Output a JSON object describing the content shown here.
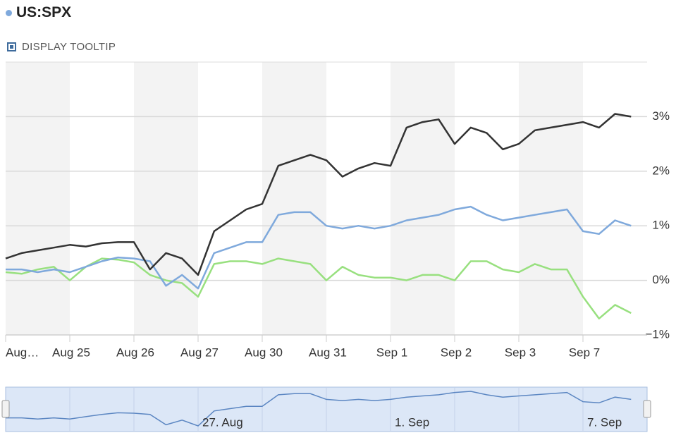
{
  "chart_data": {
    "type": "line",
    "tooltip_toggle": "DISPLAY TOOLTIP",
    "categories": [
      "Aug…",
      null,
      null,
      null,
      "Aug 25",
      null,
      null,
      null,
      "Aug 26",
      null,
      null,
      null,
      "Aug 27",
      null,
      null,
      null,
      "Aug 30",
      null,
      null,
      null,
      "Aug 31",
      null,
      null,
      null,
      "Sep 1",
      null,
      null,
      null,
      "Sep 2",
      null,
      null,
      null,
      "Sep 3",
      null,
      null,
      null,
      "Sep 7",
      null,
      null,
      null
    ],
    "series": [
      {
        "color": "#333333",
        "values": [
          0.4,
          0.5,
          0.55,
          0.6,
          0.65,
          0.62,
          0.68,
          0.7,
          0.7,
          0.2,
          0.5,
          0.4,
          0.1,
          0.9,
          1.1,
          1.3,
          1.4,
          2.1,
          2.2,
          2.3,
          2.2,
          1.9,
          2.05,
          2.15,
          2.1,
          2.8,
          2.9,
          2.95,
          2.5,
          2.8,
          2.7,
          2.4,
          2.5,
          2.75,
          2.8,
          2.85,
          2.9,
          2.8,
          3.05,
          3.0
        ]
      },
      {
        "name": "US:SPX",
        "color": "#7fa9dc",
        "values": [
          0.2,
          0.2,
          0.15,
          0.2,
          0.15,
          0.25,
          0.35,
          0.42,
          0.4,
          0.35,
          -0.1,
          0.1,
          -0.15,
          0.5,
          0.6,
          0.7,
          0.7,
          1.2,
          1.25,
          1.25,
          1.0,
          0.95,
          1.0,
          0.95,
          1.0,
          1.1,
          1.15,
          1.2,
          1.3,
          1.35,
          1.2,
          1.1,
          1.15,
          1.2,
          1.25,
          1.3,
          0.9,
          0.85,
          1.1,
          1.0
        ]
      },
      {
        "color": "#98e07f",
        "values": [
          0.15,
          0.12,
          0.2,
          0.25,
          0.0,
          0.25,
          0.4,
          0.38,
          0.33,
          0.1,
          0.0,
          -0.05,
          -0.3,
          0.3,
          0.35,
          0.35,
          0.3,
          0.4,
          0.35,
          0.3,
          0.0,
          0.25,
          0.1,
          0.05,
          0.05,
          0.0,
          0.1,
          0.1,
          0.0,
          0.35,
          0.35,
          0.2,
          0.15,
          0.3,
          0.2,
          0.2,
          -0.3,
          -0.7,
          -0.45,
          -0.6
        ]
      }
    ],
    "ylim": [
      -1,
      4
    ],
    "yticks": [
      {
        "value": -1,
        "label": "−1%"
      },
      {
        "value": 0,
        "label": "0%"
      },
      {
        "value": 1,
        "label": "1%"
      },
      {
        "value": 2,
        "label": "2%"
      },
      {
        "value": 3,
        "label": "3%"
      }
    ],
    "grid": true,
    "navigator": {
      "labels": [
        "27. Aug",
        "1. Sep",
        "7. Sep"
      ]
    }
  }
}
